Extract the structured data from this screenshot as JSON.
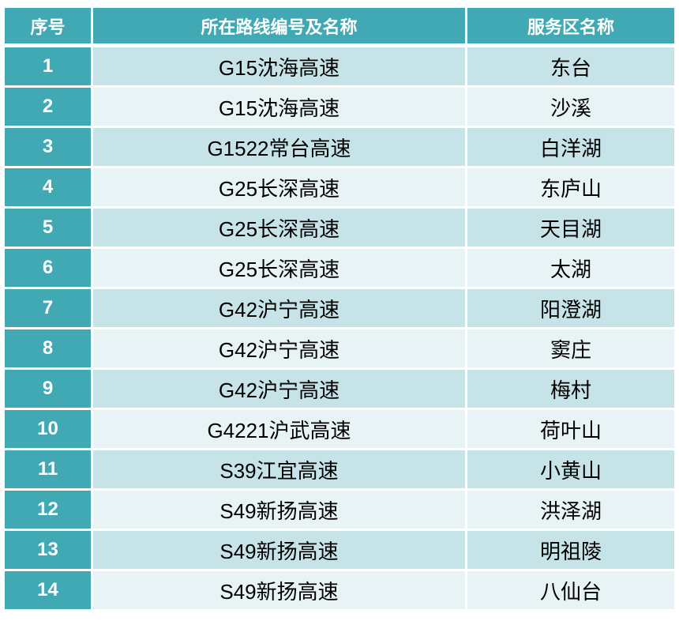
{
  "colors": {
    "teal": "#40a9b3",
    "row_band_dark": "#c6e4e8",
    "row_band_light": "#e7f3f5",
    "header_text": "#ffffff",
    "cell_text": "#000000"
  },
  "table": {
    "columns": [
      {
        "key": "index",
        "label": "序号"
      },
      {
        "key": "route",
        "label": "所在路线编号及名称"
      },
      {
        "key": "service_area",
        "label": "服务区名称"
      }
    ],
    "rows": [
      {
        "index": "1",
        "route": "G15沈海高速",
        "service_area": "东台"
      },
      {
        "index": "2",
        "route": "G15沈海高速",
        "service_area": "沙溪"
      },
      {
        "index": "3",
        "route": "G1522常台高速",
        "service_area": "白洋湖"
      },
      {
        "index": "4",
        "route": "G25长深高速",
        "service_area": "东庐山"
      },
      {
        "index": "5",
        "route": "G25长深高速",
        "service_area": "天目湖"
      },
      {
        "index": "6",
        "route": "G25长深高速",
        "service_area": "太湖"
      },
      {
        "index": "7",
        "route": "G42沪宁高速",
        "service_area": "阳澄湖"
      },
      {
        "index": "8",
        "route": "G42沪宁高速",
        "service_area": "窦庄"
      },
      {
        "index": "9",
        "route": "G42沪宁高速",
        "service_area": "梅村"
      },
      {
        "index": "10",
        "route": "G4221沪武高速",
        "service_area": "荷叶山"
      },
      {
        "index": "11",
        "route": "S39江宜高速",
        "service_area": "小黄山"
      },
      {
        "index": "12",
        "route": "S49新扬高速",
        "service_area": "洪泽湖"
      },
      {
        "index": "13",
        "route": "S49新扬高速",
        "service_area": "明祖陵"
      },
      {
        "index": "14",
        "route": "S49新扬高速",
        "service_area": "八仙台"
      }
    ]
  }
}
